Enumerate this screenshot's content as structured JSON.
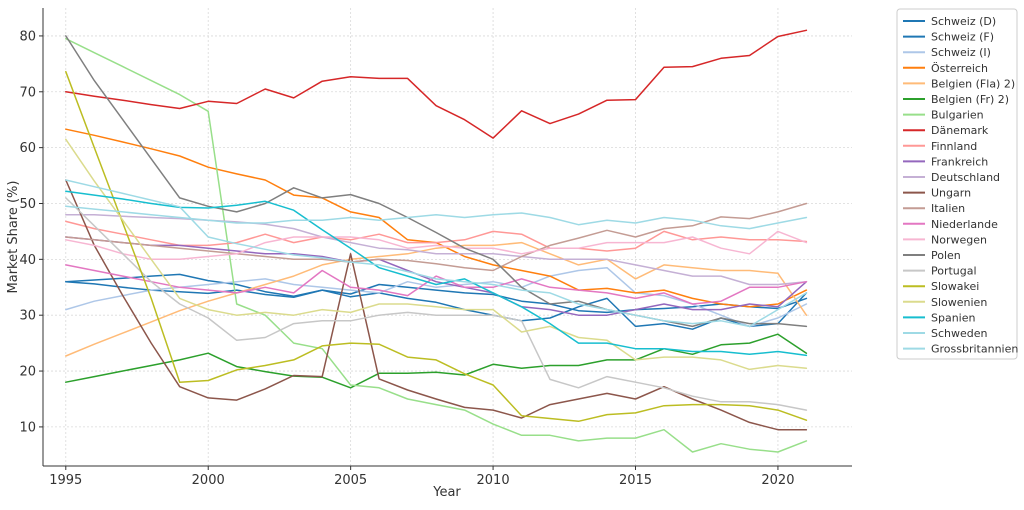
{
  "chart_data": {
    "type": "line",
    "xlabel": "Year",
    "ylabel": "Market Share (%)",
    "xlim": [
      1994.2,
      2022.6
    ],
    "ylim": [
      3,
      85
    ],
    "xticks": [
      1995,
      2000,
      2005,
      2010,
      2015,
      2020
    ],
    "yticks": [
      10,
      20,
      30,
      40,
      50,
      60,
      70,
      80
    ],
    "grid": true,
    "legend_position": "right-outside",
    "x": [
      1995,
      1996,
      1997,
      1998,
      1999,
      2000,
      2001,
      2002,
      2003,
      2004,
      2005,
      2006,
      2007,
      2008,
      2009,
      2010,
      2011,
      2012,
      2013,
      2014,
      2015,
      2016,
      2017,
      2018,
      2019,
      2020,
      2021
    ],
    "series": [
      {
        "name": "Schweiz (D)",
        "color": "#1f77b4",
        "values": [
          36,
          36.3,
          36.6,
          37,
          37.3,
          36.2,
          35.5,
          34.2,
          33.4,
          34.5,
          33.8,
          35.5,
          35,
          34.5,
          34,
          33.7,
          32.5,
          32,
          30.8,
          30.5,
          31,
          31.2,
          31.5,
          32,
          31.5,
          31.2,
          33
        ]
      },
      {
        "name": "Schweiz (F)",
        "color": "#1f77b4",
        "values": [
          36,
          35.6,
          35,
          34.5,
          34.2,
          33.9,
          34.5,
          33.7,
          33.2,
          34.5,
          33.3,
          34,
          33,
          32.3,
          31,
          30,
          29,
          29.5,
          31.5,
          33,
          28,
          28.5,
          27.5,
          29.5,
          28,
          28.5,
          34
        ]
      },
      {
        "name": "Schweiz (I)",
        "color": "#aec7e8",
        "values": [
          31,
          32.5,
          33.5,
          34.5,
          35,
          35.5,
          36,
          36.5,
          35.5,
          35,
          34.5,
          34,
          36,
          35,
          35.5,
          36,
          35,
          37,
          38,
          38.5,
          34,
          33.5,
          32,
          30,
          28,
          29.5,
          32
        ]
      },
      {
        "name": "Österreich",
        "color": "#ff7f0e",
        "values": [
          63.3,
          62.2,
          61,
          59.8,
          58.5,
          56.5,
          55.3,
          54.2,
          51.5,
          51,
          48.5,
          47.5,
          43.5,
          43,
          40.5,
          39,
          38,
          37,
          34.5,
          34.8,
          34,
          34.5,
          33,
          32,
          31.5,
          32,
          34.5
        ]
      },
      {
        "name": "Belgien (Fla) 2)",
        "color": "#ffbb78",
        "values": [
          22.7,
          24.8,
          26.8,
          28.8,
          30.8,
          32.5,
          34,
          35.5,
          37,
          39,
          40,
          40.5,
          41,
          42,
          42.5,
          42.5,
          43,
          41,
          39,
          40,
          36.5,
          39,
          38.5,
          38,
          38,
          37.5,
          30
        ]
      },
      {
        "name": "Belgien (Fr) 2)",
        "color": "#2ca02c",
        "values": [
          18,
          19,
          20,
          21,
          22,
          23.2,
          20.8,
          19.9,
          19.1,
          18.9,
          17,
          19.6,
          19.6,
          19.8,
          19.3,
          21.2,
          20.5,
          21,
          21,
          22,
          22,
          24,
          23,
          24.7,
          25,
          26.6,
          23.2
        ]
      },
      {
        "name": "Bulgarien",
        "color": "#98df8a",
        "values": [
          79.5,
          77,
          74.5,
          72,
          69.5,
          66.5,
          32,
          30,
          25,
          24,
          17.5,
          17,
          15,
          14,
          13,
          10.5,
          8.5,
          8.5,
          7.5,
          8,
          8,
          9.5,
          5.5,
          7,
          6,
          5.5,
          7.5
        ]
      },
      {
        "name": "Dänemark",
        "color": "#d62728",
        "values": [
          70,
          69.2,
          68.5,
          67.7,
          67,
          68.3,
          67.9,
          70.5,
          68.9,
          71.9,
          72.7,
          72.4,
          72.4,
          67.5,
          65,
          61.7,
          66.6,
          64.3,
          66,
          68.5,
          68.6,
          74.4,
          74.5,
          76,
          76.5,
          79.9,
          81
        ]
      },
      {
        "name": "Finnland",
        "color": "#ff9896",
        "values": [
          46.8,
          45.5,
          44.5,
          43.5,
          42.5,
          42.5,
          43,
          44.5,
          43,
          44,
          43.5,
          44.5,
          43,
          43,
          43.5,
          45,
          44.5,
          42,
          42,
          41.5,
          42,
          45,
          43.5,
          44,
          43.5,
          43.5,
          43.2
        ]
      },
      {
        "name": "Frankreich",
        "color": "#9467bd",
        "values": [
          44,
          43.5,
          43,
          42.5,
          42.5,
          42,
          41.5,
          41,
          41,
          40.5,
          39.5,
          40,
          38,
          36,
          35,
          34,
          31.5,
          31,
          30,
          30,
          31,
          32,
          31,
          31,
          32,
          31.5,
          36
        ]
      },
      {
        "name": "Deutschland",
        "color": "#c5b0d5",
        "values": [
          48,
          48,
          47.7,
          47.5,
          47.3,
          47,
          46.7,
          46.3,
          45.5,
          44,
          43,
          42,
          41.7,
          41,
          41,
          41,
          40.5,
          40,
          40,
          40,
          39,
          38,
          37,
          37,
          35.5,
          35.5,
          36
        ]
      },
      {
        "name": "Ungarn",
        "color": "#8c564b",
        "values": [
          54.2,
          42.5,
          33.5,
          25,
          17.2,
          15.2,
          14.8,
          16.8,
          19.2,
          19,
          41,
          18.6,
          16.6,
          15,
          13.5,
          13,
          11.6,
          14,
          15,
          16,
          15,
          17.2,
          15,
          13,
          10.8,
          9.5,
          9.5
        ]
      },
      {
        "name": "Italien",
        "color": "#c49c94",
        "values": [
          44,
          43.5,
          43,
          42.5,
          42,
          41.5,
          41,
          40.5,
          40,
          40,
          39.5,
          40,
          39.8,
          39.2,
          38.5,
          38,
          40.5,
          42.5,
          43.8,
          45.2,
          44,
          45.5,
          46,
          47.6,
          47.3,
          48.5,
          50
        ]
      },
      {
        "name": "Niederlande",
        "color": "#e377c2",
        "values": [
          39,
          38,
          37,
          36,
          35,
          34.5,
          34,
          35,
          34,
          38,
          35,
          34.5,
          33.5,
          37,
          35,
          35,
          36.5,
          35,
          34.5,
          34,
          33,
          34,
          32,
          32.5,
          35,
          35,
          36
        ]
      },
      {
        "name": "Norwegen",
        "color": "#f7b6d2",
        "values": [
          43.5,
          42.5,
          41,
          40,
          40,
          40.5,
          41,
          43,
          44,
          44,
          44,
          43.5,
          42,
          42.5,
          42,
          42,
          41,
          42,
          42,
          43,
          43,
          43,
          44,
          42,
          41,
          45,
          43
        ]
      },
      {
        "name": "Polen",
        "color": "#7f7f7f",
        "values": [
          80,
          72,
          65,
          58,
          51,
          49.5,
          48.5,
          50,
          52.8,
          51,
          51.6,
          50,
          47.5,
          44.8,
          42,
          40,
          35,
          32,
          32.5,
          31,
          30,
          29,
          28,
          29.5,
          28.5,
          28.5,
          28
        ]
      },
      {
        "name": "Portugal",
        "color": "#c7c7c7",
        "values": [
          51,
          46,
          41,
          36,
          32,
          29.5,
          25.5,
          26,
          28.5,
          29,
          29,
          30,
          30.5,
          30,
          30,
          30,
          29,
          18.5,
          17,
          19,
          18,
          17,
          15.5,
          14.5,
          14.5,
          14,
          13
        ]
      },
      {
        "name": "Slowakei",
        "color": "#bcbd22",
        "values": [
          73.6,
          60,
          46.5,
          33,
          18,
          18.3,
          20.2,
          21,
          22,
          24.5,
          25,
          24.8,
          22.5,
          22,
          19.5,
          17.5,
          12,
          11.5,
          11,
          12.2,
          12.5,
          13.8,
          14,
          14,
          13.8,
          13,
          11.2
        ]
      },
      {
        "name": "Slowenien",
        "color": "#dbdb8d",
        "values": [
          61.5,
          54,
          47,
          40,
          33,
          31,
          30,
          30.5,
          30,
          31,
          30.5,
          32,
          32,
          31.5,
          31,
          31,
          27,
          28,
          26,
          25.5,
          22,
          22.5,
          22.5,
          22,
          20.3,
          21,
          20.5
        ]
      },
      {
        "name": "Spanien",
        "color": "#17becf",
        "values": [
          52.2,
          51.5,
          50.8,
          50,
          49.3,
          49.2,
          49.7,
          50.4,
          48.8,
          45.3,
          42,
          38.5,
          37,
          35.5,
          36.5,
          34,
          31.5,
          28.5,
          25,
          25,
          24,
          24,
          23.5,
          23.5,
          23,
          23.5,
          22.8
        ]
      },
      {
        "name": "Schweden",
        "color": "#9edae5",
        "values": [
          54.2,
          53,
          51.8,
          50.6,
          49.4,
          44,
          42.8,
          41.8,
          40.8,
          40.3,
          39.5,
          39,
          37.8,
          36.5,
          36,
          35.5,
          34.5,
          34,
          32,
          31,
          30,
          29,
          28.5,
          29,
          28,
          31,
          34
        ]
      },
      {
        "name": "Grossbritannien",
        "color": "#9edae5",
        "values": [
          49.5,
          49,
          48.5,
          48,
          47.5,
          47,
          46.5,
          46.5,
          47,
          47,
          47.5,
          47,
          47.5,
          48,
          47.5,
          48,
          48.3,
          47.5,
          46.2,
          47,
          46.5,
          47.5,
          47,
          46,
          45.5,
          46.5,
          47.5
        ]
      }
    ]
  }
}
